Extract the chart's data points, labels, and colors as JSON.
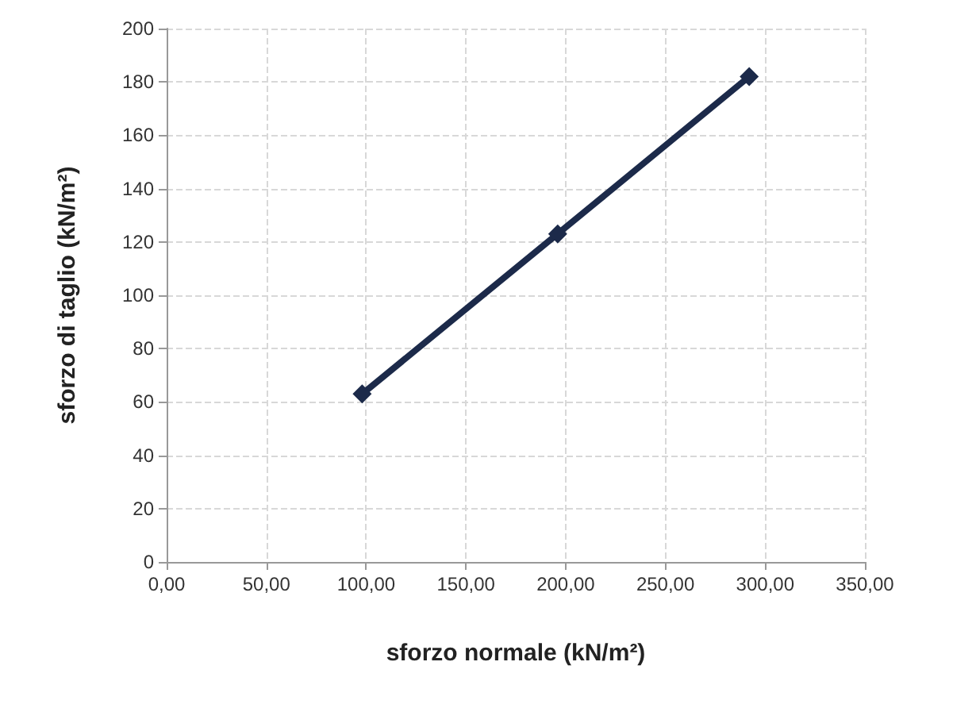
{
  "chart_data": {
    "type": "line",
    "xlabel": "sforzo normale (kN/m²)",
    "ylabel": "sforzo di taglio (kN/m²)",
    "x": [
      98,
      196,
      292
    ],
    "series": [
      {
        "color": "#1c2a4a",
        "values": [
          63,
          123,
          182
        ]
      }
    ],
    "xlim": [
      0,
      350
    ],
    "xticks": [
      {
        "value": 0,
        "label": "0,00"
      },
      {
        "value": 50,
        "label": "50,00"
      },
      {
        "value": 100,
        "label": "100,00"
      },
      {
        "value": 150,
        "label": "150,00"
      },
      {
        "value": 200,
        "label": "200,00"
      },
      {
        "value": 250,
        "label": "250,00"
      },
      {
        "value": 300,
        "label": "300,00"
      },
      {
        "value": 350,
        "label": "350,00"
      }
    ],
    "ylim": [
      0,
      200
    ],
    "yticks": [
      0,
      20,
      40,
      60,
      80,
      100,
      120,
      140,
      160,
      180,
      200
    ],
    "grid": true,
    "marker": "diamond",
    "line_style": "solid"
  }
}
